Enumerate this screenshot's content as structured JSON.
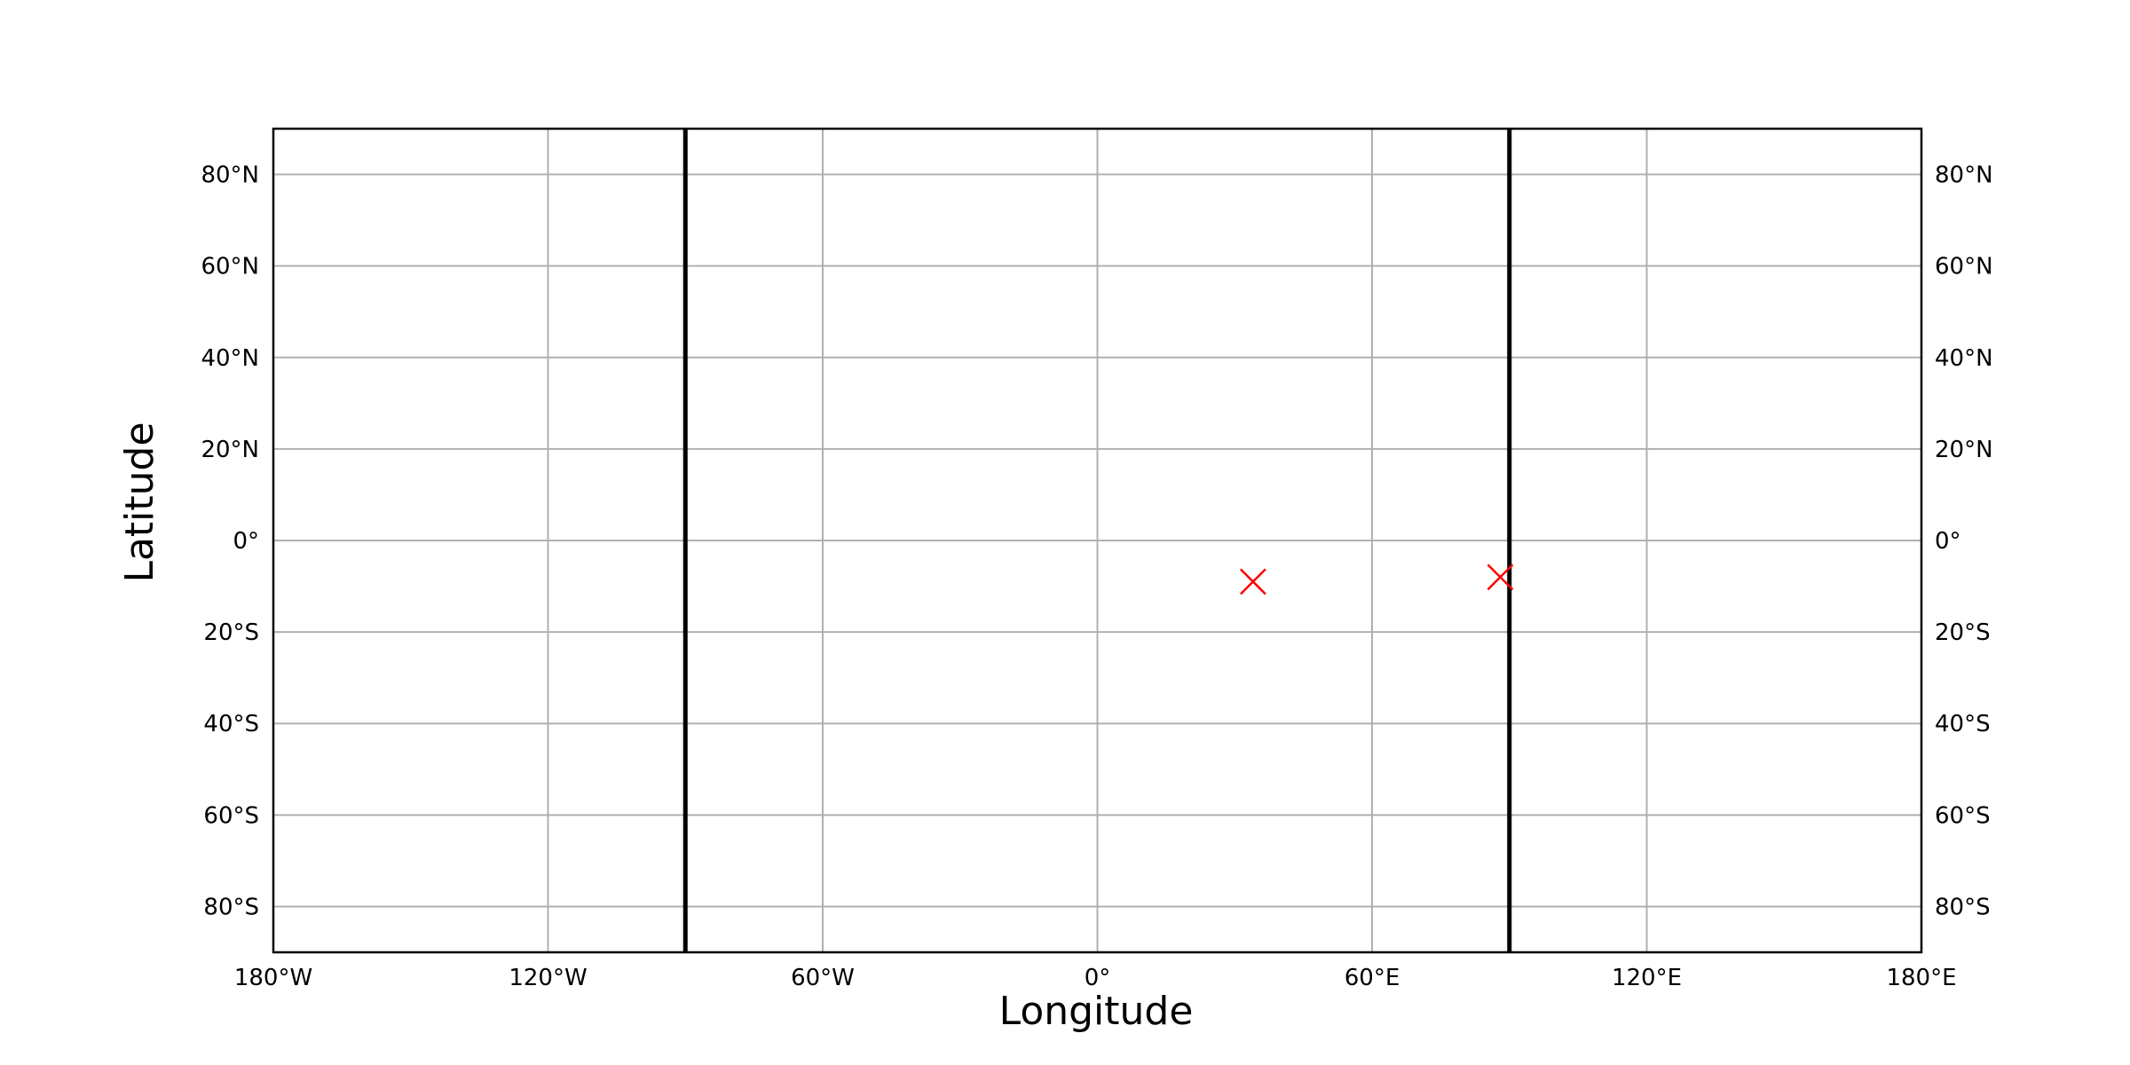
{
  "chart_data": {
    "type": "scatter",
    "title": "",
    "xlabel": "Longitude",
    "ylabel": "Latitude",
    "xlim": [
      -180,
      180
    ],
    "ylim": [
      -90,
      90
    ],
    "grid": true,
    "x_ticks": [
      {
        "value": -180,
        "label": "180°W"
      },
      {
        "value": -120,
        "label": "120°W"
      },
      {
        "value": -60,
        "label": "60°W"
      },
      {
        "value": 0,
        "label": "0°"
      },
      {
        "value": 60,
        "label": "60°E"
      },
      {
        "value": 120,
        "label": "120°E"
      },
      {
        "value": 180,
        "label": "180°E"
      }
    ],
    "y_ticks": [
      {
        "value": 80,
        "label": "80°N"
      },
      {
        "value": 60,
        "label": "60°N"
      },
      {
        "value": 40,
        "label": "40°N"
      },
      {
        "value": 20,
        "label": "20°N"
      },
      {
        "value": 0,
        "label": "0°"
      },
      {
        "value": -20,
        "label": "20°S"
      },
      {
        "value": -40,
        "label": "40°S"
      },
      {
        "value": -60,
        "label": "60°S"
      },
      {
        "value": -80,
        "label": "80°S"
      }
    ],
    "vertical_lines": [
      -90,
      90
    ],
    "series": [
      {
        "marker": "x",
        "color": "#ff0000",
        "points": [
          {
            "x": 34,
            "y": -9
          },
          {
            "x": 88,
            "y": -8
          }
        ]
      }
    ],
    "colors": {
      "grid": "#b0b0b0",
      "frame": "#000000",
      "vline": "#000000"
    }
  }
}
